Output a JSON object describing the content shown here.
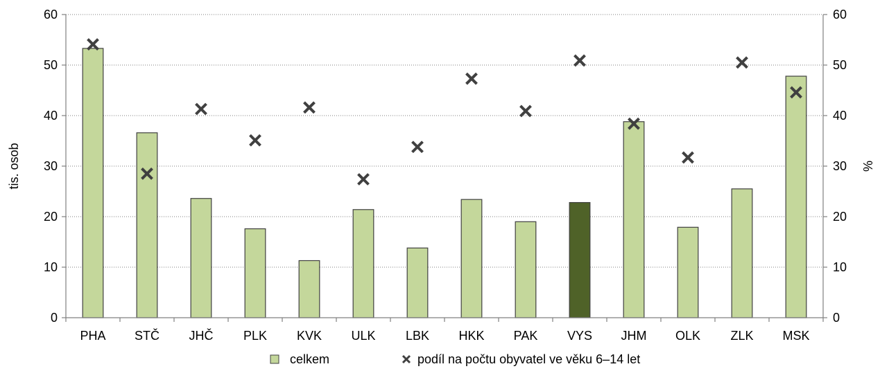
{
  "chart_data": {
    "type": "bar",
    "categories": [
      "PHA",
      "STČ",
      "JHČ",
      "PLK",
      "KVK",
      "ULK",
      "LBK",
      "HKK",
      "PAK",
      "VYS",
      "JHM",
      "OLK",
      "ZLK",
      "MSK"
    ],
    "series": [
      {
        "name": "celkem",
        "type": "bar",
        "axis": "left",
        "values": [
          53.3,
          36.6,
          23.6,
          17.6,
          11.3,
          21.4,
          13.8,
          23.4,
          19.0,
          22.8,
          38.8,
          17.9,
          25.5,
          47.8
        ],
        "color": "#c4d79b",
        "highlight_color": "#4f6228",
        "highlight_category": "VYS"
      },
      {
        "name": "podíl na počtu obyvatel ve věku 6–14 let",
        "type": "scatter",
        "axis": "right",
        "marker": "x",
        "values": [
          54.1,
          28.5,
          41.3,
          35.1,
          41.6,
          27.4,
          33.8,
          47.3,
          40.9,
          50.9,
          38.4,
          31.7,
          50.5,
          44.6
        ],
        "color": "#404040"
      }
    ],
    "ylabel": "tis. osob",
    "y2label": "%",
    "ylim": [
      0,
      60
    ],
    "y2lim": [
      0,
      60
    ],
    "yticks": [
      0,
      10,
      20,
      30,
      40,
      50,
      60
    ],
    "grid": "horizontal dotted",
    "legend_position": "bottom"
  }
}
